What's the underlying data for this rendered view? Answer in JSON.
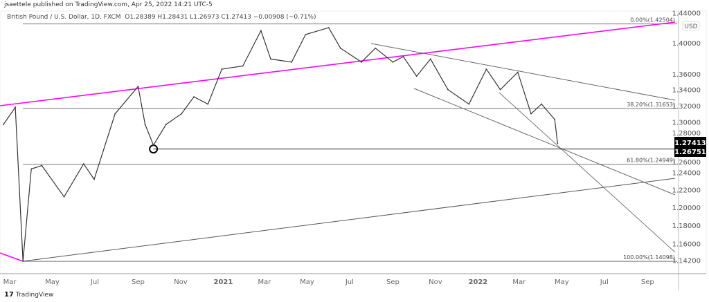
{
  "header": {
    "published": "jsaettele published on TradingView.com, Apr 25, 2022 14:21 UTC-5",
    "symbol": "British Pound / U.S. Dollar, 1D, FXCM",
    "ohlc": "O1.28389 H1.28431 L1.26973 C1.27413 −0.00908 (−0.71%)"
  },
  "footer": {
    "brand": "TradingView",
    "logo": "tv-logo-icon"
  },
  "colors": {
    "trendline_accent": "#ff00ff",
    "drawing": "#555555",
    "price": "#333333",
    "last_price_bg": "#000000"
  },
  "chart_data": {
    "type": "candlestick",
    "title": "British Pound / U.S. Dollar, 1D, FXCM",
    "currency": "USD",
    "yscale": "log",
    "ylim": [
      1.135,
      1.44
    ],
    "y_ticks": [
      "1.14200",
      "1.16000",
      "1.18000",
      "1.20000",
      "1.22000",
      "1.24000",
      "1.26000",
      "1.28000",
      "1.30000",
      "1.32000",
      "1.34000",
      "1.36000",
      "1.40000",
      "1.44000"
    ],
    "x_ticks": [
      {
        "label": "Mar",
        "date": "2020-03-01"
      },
      {
        "label": "May",
        "date": "2020-05-01"
      },
      {
        "label": "Jul",
        "date": "2020-07-01"
      },
      {
        "label": "Sep",
        "date": "2020-09-01"
      },
      {
        "label": "Nov",
        "date": "2020-11-01"
      },
      {
        "label": "2021",
        "date": "2021-01-01",
        "bold": true
      },
      {
        "label": "Mar",
        "date": "2021-03-01"
      },
      {
        "label": "May",
        "date": "2021-05-01"
      },
      {
        "label": "Jul",
        "date": "2021-07-01"
      },
      {
        "label": "Sep",
        "date": "2021-09-01"
      },
      {
        "label": "Nov",
        "date": "2021-11-01"
      },
      {
        "label": "2022",
        "date": "2022-01-01",
        "bold": true
      },
      {
        "label": "Mar",
        "date": "2022-03-01"
      },
      {
        "label": "May",
        "date": "2022-05-01"
      },
      {
        "label": "Jul",
        "date": "2022-07-01"
      },
      {
        "label": "Sep",
        "date": "2022-09-01"
      }
    ],
    "series": [
      {
        "points": [
          [
            "2020-02-21",
            1.297
          ],
          [
            "2020-03-09",
            1.318
          ],
          [
            "2020-03-20",
            1.141
          ],
          [
            "2020-04-01",
            1.244
          ],
          [
            "2020-04-16",
            1.248
          ],
          [
            "2020-05-18",
            1.212
          ],
          [
            "2020-06-15",
            1.25
          ],
          [
            "2020-06-30",
            1.232
          ],
          [
            "2020-07-30",
            1.31
          ],
          [
            "2020-09-01",
            1.344
          ],
          [
            "2020-09-11",
            1.297
          ],
          [
            "2020-09-23",
            1.272
          ],
          [
            "2020-10-11",
            1.297
          ],
          [
            "2020-11-02",
            1.31
          ],
          [
            "2020-11-20",
            1.331
          ],
          [
            "2020-12-10",
            1.322
          ],
          [
            "2020-12-30",
            1.366
          ],
          [
            "2021-01-29",
            1.37
          ],
          [
            "2021-02-24",
            1.416
          ],
          [
            "2021-03-10",
            1.379
          ],
          [
            "2021-04-09",
            1.375
          ],
          [
            "2021-04-29",
            1.411
          ],
          [
            "2021-06-01",
            1.42
          ],
          [
            "2021-06-18",
            1.393
          ],
          [
            "2021-07-18",
            1.375
          ],
          [
            "2021-08-07",
            1.393
          ],
          [
            "2021-09-01",
            1.375
          ],
          [
            "2021-09-16",
            1.382
          ],
          [
            "2021-10-05",
            1.357
          ],
          [
            "2021-10-25",
            1.379
          ],
          [
            "2021-11-19",
            1.34
          ],
          [
            "2021-12-19",
            1.322
          ],
          [
            "2022-01-13",
            1.366
          ],
          [
            "2022-02-02",
            1.34
          ],
          [
            "2022-02-27",
            1.362
          ],
          [
            "2022-03-18",
            1.31
          ],
          [
            "2022-04-02",
            1.322
          ],
          [
            "2022-04-21",
            1.303
          ],
          [
            "2022-04-25",
            1.27413
          ]
        ]
      }
    ],
    "last_price": "1.27413",
    "level_label": "1.26751",
    "horizontal_levels": [
      {
        "price": 1.26751,
        "from": "2020-09-23"
      }
    ],
    "fibonacci": [
      {
        "label": "0.00%(1.42504)",
        "price": 1.42504
      },
      {
        "label": "38.20%(1.31653)",
        "price": 1.31653
      },
      {
        "label": "61.80%(1.24949)",
        "price": 1.24949
      },
      {
        "label": "100.00%(1.14098)",
        "price": 1.14098
      }
    ]
  }
}
